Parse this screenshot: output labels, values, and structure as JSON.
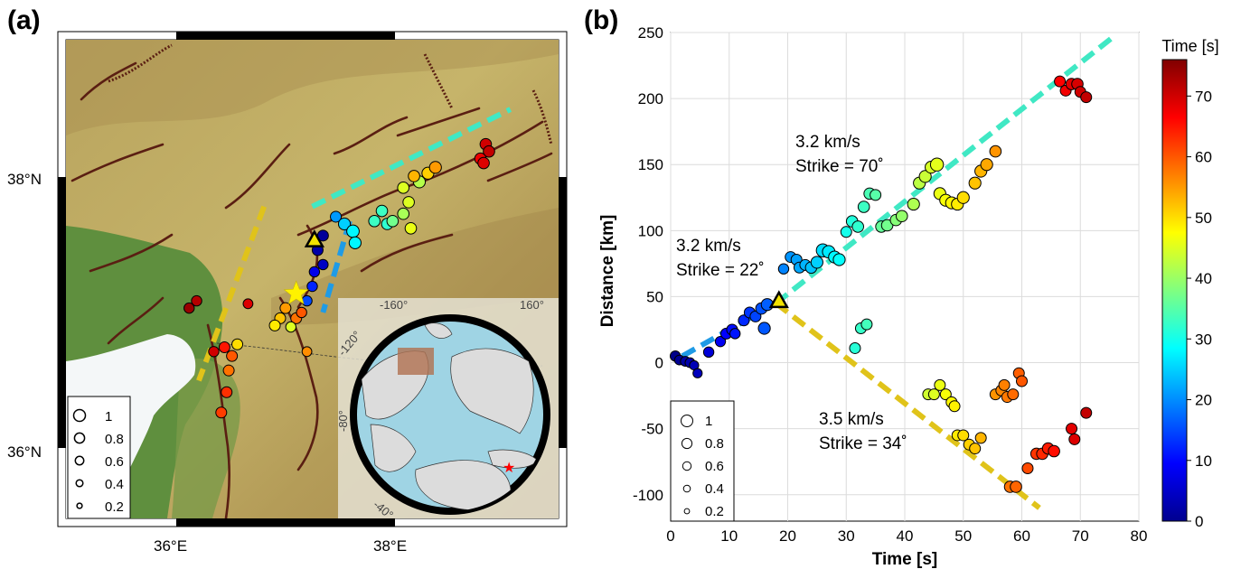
{
  "panel_a": {
    "label": "(a)",
    "lat_ticks": [
      "38°N",
      "36°N"
    ],
    "lon_ticks": [
      "36°E",
      "38°E"
    ],
    "legend": [
      "1",
      "0.8",
      "0.6",
      "0.4",
      "0.2"
    ],
    "inset_labels": [
      "-160°",
      "160°",
      "-120°",
      "-80°",
      "-40°"
    ]
  },
  "panel_b": {
    "label": "(b)",
    "colorbar": {
      "title": "Time [s]",
      "ticks": [
        "0",
        "10",
        "20",
        "30",
        "40",
        "50",
        "60",
        "70"
      ]
    },
    "legend": [
      "1",
      "0.8",
      "0.6",
      "0.4",
      "0.2"
    ],
    "annotations": [
      {
        "speed": "3.2 km/s",
        "strike": "Strike = 70˚"
      },
      {
        "speed": "3.2 km/s",
        "strike": "Strike = 22˚"
      },
      {
        "speed": "3.5 km/s",
        "strike": "Strike = 34˚"
      }
    ]
  },
  "chart_data": [
    {
      "type": "scatter",
      "title": "",
      "xlabel": "Time [s]",
      "ylabel": "Distance [km]",
      "xlim": [
        0,
        80
      ],
      "ylim": [
        -120,
        250
      ],
      "x_ticks": [
        "0",
        "10",
        "20",
        "30",
        "40",
        "50",
        "60",
        "70",
        "80"
      ],
      "y_ticks": [
        "250",
        "200",
        "150",
        "100",
        "50",
        "0",
        "-50",
        "-100"
      ],
      "grid": true,
      "legend_placement": "bottom-left",
      "colorbar": {
        "label": "Time [s]",
        "range": [
          0,
          76
        ],
        "colormap": "jet"
      },
      "rupture_lines": [
        {
          "from": [
            2,
            5
          ],
          "to": [
            18,
            45
          ],
          "color": "#1f9be6",
          "label": "3.2 km/s, Strike = 22˚"
        },
        {
          "from": [
            18,
            45
          ],
          "to": [
            76,
            248
          ],
          "color": "#40e8c4",
          "label": "3.2 km/s, Strike = 70˚"
        },
        {
          "from": [
            18,
            45
          ],
          "to": [
            63,
            -110
          ],
          "color": "#e0c31a",
          "label": "3.5 km/s, Strike = 34˚"
        }
      ],
      "epicenter_marker": {
        "x": 18.5,
        "y": 47
      },
      "points": [
        {
          "t": 0.8,
          "d": 5,
          "s": 0.45
        },
        {
          "t": 1.5,
          "d": 2,
          "s": 0.4
        },
        {
          "t": 2.5,
          "d": 1,
          "s": 0.4
        },
        {
          "t": 3.3,
          "d": 0,
          "s": 0.4
        },
        {
          "t": 4,
          "d": -2,
          "s": 0.35
        },
        {
          "t": 4.6,
          "d": -8,
          "s": 0.35
        },
        {
          "t": 6.5,
          "d": 8,
          "s": 0.45
        },
        {
          "t": 8.5,
          "d": 16,
          "s": 0.45
        },
        {
          "t": 9.5,
          "d": 22,
          "s": 0.5
        },
        {
          "t": 10.5,
          "d": 25,
          "s": 0.5
        },
        {
          "t": 11,
          "d": 22,
          "s": 0.45
        },
        {
          "t": 12.5,
          "d": 32,
          "s": 0.5
        },
        {
          "t": 13.5,
          "d": 38,
          "s": 0.5
        },
        {
          "t": 14.5,
          "d": 35,
          "s": 0.5
        },
        {
          "t": 15.5,
          "d": 41,
          "s": 0.55
        },
        {
          "t": 16.5,
          "d": 44,
          "s": 0.6
        },
        {
          "t": 16,
          "d": 26,
          "s": 0.6
        },
        {
          "t": 19.3,
          "d": 71,
          "s": 0.45
        },
        {
          "t": 20.5,
          "d": 80,
          "s": 0.5
        },
        {
          "t": 21.5,
          "d": 78,
          "s": 0.5
        },
        {
          "t": 22,
          "d": 72,
          "s": 0.5
        },
        {
          "t": 23,
          "d": 74,
          "s": 0.5
        },
        {
          "t": 24,
          "d": 72,
          "s": 0.55
        },
        {
          "t": 25,
          "d": 76,
          "s": 0.6
        },
        {
          "t": 26,
          "d": 85,
          "s": 0.7
        },
        {
          "t": 27,
          "d": 84,
          "s": 0.65
        },
        {
          "t": 28,
          "d": 80,
          "s": 0.6
        },
        {
          "t": 28.8,
          "d": 78,
          "s": 0.6
        },
        {
          "t": 31.5,
          "d": 11,
          "s": 0.5
        },
        {
          "t": 32.5,
          "d": 26,
          "s": 0.5
        },
        {
          "t": 33.5,
          "d": 29,
          "s": 0.5
        },
        {
          "t": 30,
          "d": 99,
          "s": 0.5
        },
        {
          "t": 31,
          "d": 107,
          "s": 0.55
        },
        {
          "t": 32,
          "d": 103,
          "s": 0.55
        },
        {
          "t": 33,
          "d": 118,
          "s": 0.55
        },
        {
          "t": 34,
          "d": 128,
          "s": 0.55
        },
        {
          "t": 35,
          "d": 127,
          "s": 0.5
        },
        {
          "t": 36,
          "d": 103,
          "s": 0.55
        },
        {
          "t": 37,
          "d": 104,
          "s": 0.55
        },
        {
          "t": 38.5,
          "d": 108,
          "s": 0.55
        },
        {
          "t": 39.5,
          "d": 111,
          "s": 0.55
        },
        {
          "t": 41.5,
          "d": 120,
          "s": 0.6
        },
        {
          "t": 42.5,
          "d": 136,
          "s": 0.6
        },
        {
          "t": 43.5,
          "d": 141,
          "s": 0.6
        },
        {
          "t": 44.5,
          "d": 148,
          "s": 0.6
        },
        {
          "t": 45.5,
          "d": 150,
          "s": 0.7
        },
        {
          "t": 46,
          "d": 128,
          "s": 0.6
        },
        {
          "t": 47,
          "d": 123,
          "s": 0.6
        },
        {
          "t": 48,
          "d": 121,
          "s": 0.6
        },
        {
          "t": 49,
          "d": 120,
          "s": 0.6
        },
        {
          "t": 50,
          "d": 125,
          "s": 0.6
        },
        {
          "t": 52,
          "d": 136,
          "s": 0.6
        },
        {
          "t": 53,
          "d": 145,
          "s": 0.6
        },
        {
          "t": 54,
          "d": 150,
          "s": 0.6
        },
        {
          "t": 55.5,
          "d": 160,
          "s": 0.55
        },
        {
          "t": 44,
          "d": -24,
          "s": 0.5
        },
        {
          "t": 45,
          "d": -24,
          "s": 0.5
        },
        {
          "t": 46,
          "d": -17,
          "s": 0.5
        },
        {
          "t": 47,
          "d": -24,
          "s": 0.5
        },
        {
          "t": 48,
          "d": -30,
          "s": 0.5
        },
        {
          "t": 48.5,
          "d": -33,
          "s": 0.5
        },
        {
          "t": 49,
          "d": -55,
          "s": 0.5
        },
        {
          "t": 50,
          "d": -55,
          "s": 0.5
        },
        {
          "t": 51,
          "d": -62,
          "s": 0.5
        },
        {
          "t": 52,
          "d": -65,
          "s": 0.5
        },
        {
          "t": 53,
          "d": -57,
          "s": 0.5
        },
        {
          "t": 55.5,
          "d": -24,
          "s": 0.5
        },
        {
          "t": 56.5,
          "d": -21,
          "s": 0.5
        },
        {
          "t": 57,
          "d": -17,
          "s": 0.5
        },
        {
          "t": 57.5,
          "d": -26,
          "s": 0.5
        },
        {
          "t": 58.5,
          "d": -24,
          "s": 0.5
        },
        {
          "t": 59.5,
          "d": -8,
          "s": 0.5
        },
        {
          "t": 60,
          "d": -14,
          "s": 0.5
        },
        {
          "t": 58,
          "d": -94,
          "s": 0.55
        },
        {
          "t": 59,
          "d": -94,
          "s": 0.55
        },
        {
          "t": 61,
          "d": -80,
          "s": 0.5
        },
        {
          "t": 62.5,
          "d": -69,
          "s": 0.55
        },
        {
          "t": 63.5,
          "d": -69,
          "s": 0.55
        },
        {
          "t": 64.5,
          "d": -65,
          "s": 0.55
        },
        {
          "t": 65.5,
          "d": -67,
          "s": 0.55
        },
        {
          "t": 68.5,
          "d": -50,
          "s": 0.5
        },
        {
          "t": 69,
          "d": -58,
          "s": 0.5
        },
        {
          "t": 71,
          "d": -38,
          "s": 0.5
        },
        {
          "t": 66.5,
          "d": 213,
          "s": 0.5
        },
        {
          "t": 67.5,
          "d": 206,
          "s": 0.5
        },
        {
          "t": 68.5,
          "d": 211,
          "s": 0.55
        },
        {
          "t": 69.5,
          "d": 211,
          "s": 0.55
        },
        {
          "t": 70,
          "d": 205,
          "s": 0.5
        },
        {
          "t": 71,
          "d": 201,
          "s": 0.5
        }
      ]
    },
    {
      "type": "scatter",
      "title": "",
      "xlabel": "",
      "ylabel": "",
      "x_ticks": [
        "36°E",
        "38°E"
      ],
      "y_ticks": [
        "38°N",
        "36°N"
      ],
      "xlim": [
        34.9,
        39.5
      ],
      "ylim": [
        35.6,
        38.9
      ],
      "colorbar": {
        "label": "Time [s]",
        "range": [
          0,
          76
        ],
        "colormap": "jet"
      },
      "epicenter_star": {
        "lon": 37.05,
        "lat": 37.15
      },
      "triangle": {
        "lon": 37.22,
        "lat": 37.52
      },
      "rupture_lines": [
        {
          "from": [
            37.2,
            37.75
          ],
          "to": [
            39.05,
            38.42
          ],
          "color": "#40e8c4"
        },
        {
          "from": [
            36.75,
            37.75
          ],
          "to": [
            36.14,
            36.55
          ],
          "color": "#e0c31a"
        },
        {
          "from": [
            37.55,
            37.65
          ],
          "to": [
            37.3,
            37.02
          ],
          "color": "#1f9be6"
        }
      ],
      "points": [
        {
          "lon": 37.3,
          "lat": 37.55,
          "t": 2,
          "s": 0.5
        },
        {
          "lon": 37.25,
          "lat": 37.45,
          "t": 3,
          "s": 0.5
        },
        {
          "lon": 37.22,
          "lat": 37.3,
          "t": 8,
          "s": 0.45
        },
        {
          "lon": 37.2,
          "lat": 37.2,
          "t": 12,
          "s": 0.45
        },
        {
          "lon": 37.15,
          "lat": 37.1,
          "t": 15,
          "s": 0.45
        },
        {
          "lon": 37.3,
          "lat": 37.35,
          "t": 5,
          "s": 0.45
        },
        {
          "lon": 37.42,
          "lat": 37.68,
          "t": 21,
          "s": 0.5
        },
        {
          "lon": 37.5,
          "lat": 37.63,
          "t": 25,
          "s": 0.6
        },
        {
          "lon": 37.58,
          "lat": 37.58,
          "t": 28,
          "s": 0.65
        },
        {
          "lon": 37.6,
          "lat": 37.5,
          "t": 28,
          "s": 0.6
        },
        {
          "lon": 37.78,
          "lat": 37.65,
          "t": 33,
          "s": 0.55
        },
        {
          "lon": 37.85,
          "lat": 37.72,
          "t": 33,
          "s": 0.55
        },
        {
          "lon": 37.9,
          "lat": 37.63,
          "t": 32,
          "s": 0.55
        },
        {
          "lon": 37.95,
          "lat": 37.65,
          "t": 37,
          "s": 0.55
        },
        {
          "lon": 38.05,
          "lat": 37.7,
          "t": 41,
          "s": 0.55
        },
        {
          "lon": 38.1,
          "lat": 37.78,
          "t": 45,
          "s": 0.55
        },
        {
          "lon": 38.12,
          "lat": 37.6,
          "t": 46,
          "s": 0.55
        },
        {
          "lon": 38.05,
          "lat": 37.88,
          "t": 45,
          "s": 0.55
        },
        {
          "lon": 38.2,
          "lat": 37.92,
          "t": 42,
          "s": 0.6
        },
        {
          "lon": 38.28,
          "lat": 37.98,
          "t": 51,
          "s": 0.6
        },
        {
          "lon": 38.35,
          "lat": 38.02,
          "t": 55,
          "s": 0.6
        },
        {
          "lon": 38.15,
          "lat": 37.96,
          "t": 53,
          "s": 0.55
        },
        {
          "lon": 38.82,
          "lat": 38.18,
          "t": 70,
          "s": 0.55
        },
        {
          "lon": 38.85,
          "lat": 38.13,
          "t": 71,
          "s": 0.55
        },
        {
          "lon": 38.77,
          "lat": 38.08,
          "t": 68,
          "s": 0.55
        },
        {
          "lon": 38.8,
          "lat": 38.05,
          "t": 69,
          "s": 0.55
        },
        {
          "lon": 36.95,
          "lat": 37.05,
          "t": 55,
          "s": 0.5
        },
        {
          "lon": 36.9,
          "lat": 36.98,
          "t": 52,
          "s": 0.5
        },
        {
          "lon": 36.85,
          "lat": 36.93,
          "t": 49,
          "s": 0.5
        },
        {
          "lon": 37.05,
          "lat": 36.98,
          "t": 58,
          "s": 0.5
        },
        {
          "lon": 37.1,
          "lat": 37.02,
          "t": 60,
          "s": 0.45
        },
        {
          "lon": 37.0,
          "lat": 36.92,
          "t": 45,
          "s": 0.45
        },
        {
          "lon": 37.15,
          "lat": 36.75,
          "t": 56,
          "s": 0.4
        },
        {
          "lon": 36.6,
          "lat": 37.08,
          "t": 69,
          "s": 0.4
        },
        {
          "lon": 36.5,
          "lat": 36.8,
          "t": 50,
          "s": 0.5
        },
        {
          "lon": 36.45,
          "lat": 36.72,
          "t": 60,
          "s": 0.5
        },
        {
          "lon": 36.38,
          "lat": 36.78,
          "t": 65,
          "s": 0.5
        },
        {
          "lon": 36.42,
          "lat": 36.62,
          "t": 58,
          "s": 0.5
        },
        {
          "lon": 36.4,
          "lat": 36.47,
          "t": 63,
          "s": 0.5
        },
        {
          "lon": 36.35,
          "lat": 36.33,
          "t": 62,
          "s": 0.5
        },
        {
          "lon": 36.28,
          "lat": 36.75,
          "t": 70,
          "s": 0.45
        },
        {
          "lon": 36.12,
          "lat": 37.1,
          "t": 72,
          "s": 0.45
        },
        {
          "lon": 36.05,
          "lat": 37.05,
          "t": 74,
          "s": 0.45
        }
      ]
    }
  ]
}
